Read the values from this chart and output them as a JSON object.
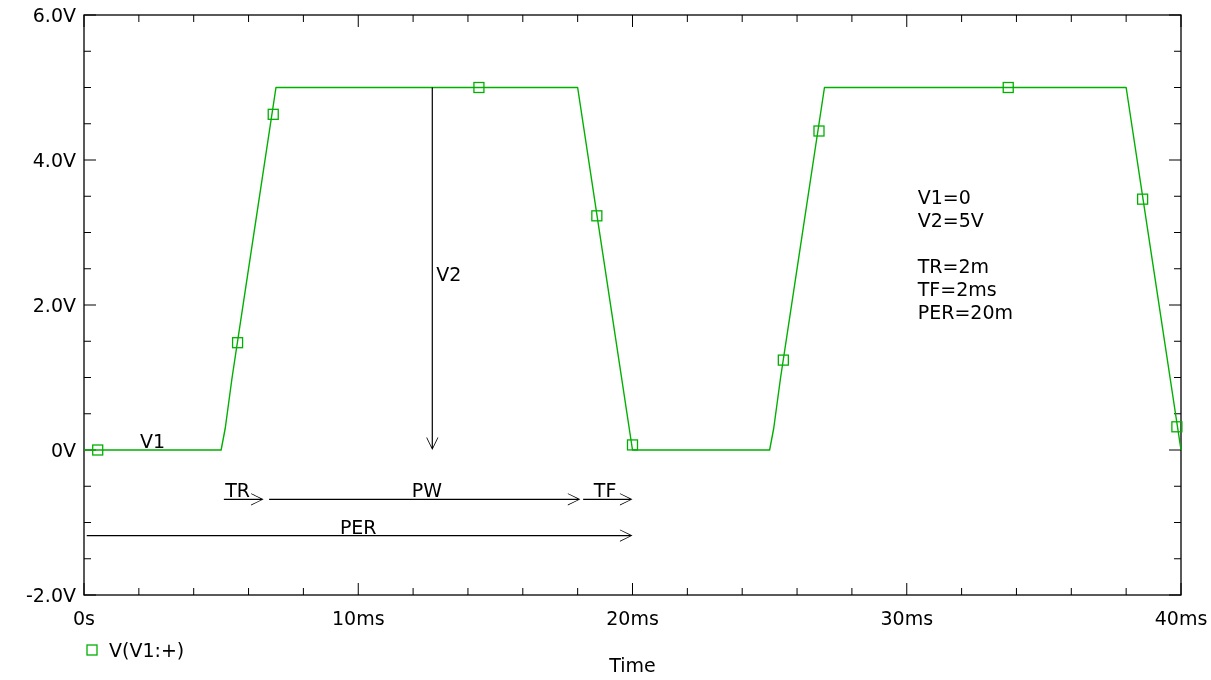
{
  "chart_data": {
    "type": "line",
    "xlabel": "Time",
    "xlim": [
      0,
      40
    ],
    "ylim": [
      -2,
      6
    ],
    "xticks": [
      {
        "value": 0,
        "label": "0s"
      },
      {
        "value": 2,
        "label": null
      },
      {
        "value": 4,
        "label": null
      },
      {
        "value": 6,
        "label": null
      },
      {
        "value": 8,
        "label": null
      },
      {
        "value": 10,
        "label": "10ms"
      },
      {
        "value": 12,
        "label": null
      },
      {
        "value": 14,
        "label": null
      },
      {
        "value": 16,
        "label": null
      },
      {
        "value": 18,
        "label": null
      },
      {
        "value": 20,
        "label": "20ms"
      },
      {
        "value": 22,
        "label": null
      },
      {
        "value": 24,
        "label": null
      },
      {
        "value": 26,
        "label": null
      },
      {
        "value": 28,
        "label": null
      },
      {
        "value": 30,
        "label": "30ms"
      },
      {
        "value": 32,
        "label": null
      },
      {
        "value": 34,
        "label": null
      },
      {
        "value": 36,
        "label": null
      },
      {
        "value": 38,
        "label": null
      },
      {
        "value": 40,
        "label": "40ms"
      }
    ],
    "yticks": [
      {
        "value": -2,
        "label": "-2.0V"
      },
      {
        "value": -1.5,
        "label": null
      },
      {
        "value": -1,
        "label": null
      },
      {
        "value": -0.5,
        "label": null
      },
      {
        "value": 0,
        "label": "0V"
      },
      {
        "value": 0.5,
        "label": null
      },
      {
        "value": 1,
        "label": null
      },
      {
        "value": 1.5,
        "label": null
      },
      {
        "value": 2,
        "label": "2.0V"
      },
      {
        "value": 2.5,
        "label": null
      },
      {
        "value": 3,
        "label": null
      },
      {
        "value": 3.5,
        "label": null
      },
      {
        "value": 4,
        "label": "4.0V"
      },
      {
        "value": 4.5,
        "label": null
      },
      {
        "value": 5,
        "label": null
      },
      {
        "value": 5.5,
        "label": null
      },
      {
        "value": 6,
        "label": "6.0V"
      }
    ],
    "grid": false,
    "legend": "bottom left",
    "series": [
      {
        "color": "#00b000",
        "marker": "none",
        "x": [
          0,
          5,
          5.15,
          5.4,
          7,
          18,
          20,
          25,
          25.15,
          25.4,
          27,
          38,
          40
        ],
        "values": [
          0,
          0,
          0.3,
          1,
          5,
          5,
          0,
          0,
          0.3,
          1,
          5,
          5,
          0
        ]
      },
      {
        "type": "scatter",
        "name": "V(V1:+)",
        "color": "#00b000",
        "marker": "square",
        "x": [
          0.5,
          5.6,
          6.9,
          14.4,
          18.7,
          20,
          25.5,
          26.8,
          33.7,
          38.6,
          39.85
        ],
        "values": [
          0,
          1.48,
          4.63,
          5,
          3.23,
          0.07,
          1.24,
          4.4,
          5,
          3.46,
          0.32
        ]
      }
    ],
    "annotations": [
      "V1",
      "V2",
      "TR",
      "PW",
      "TF",
      "PER",
      "V1=0\nV2=5V\n\nTR=2m\nTF=2ms\nPER=20m"
    ]
  }
}
